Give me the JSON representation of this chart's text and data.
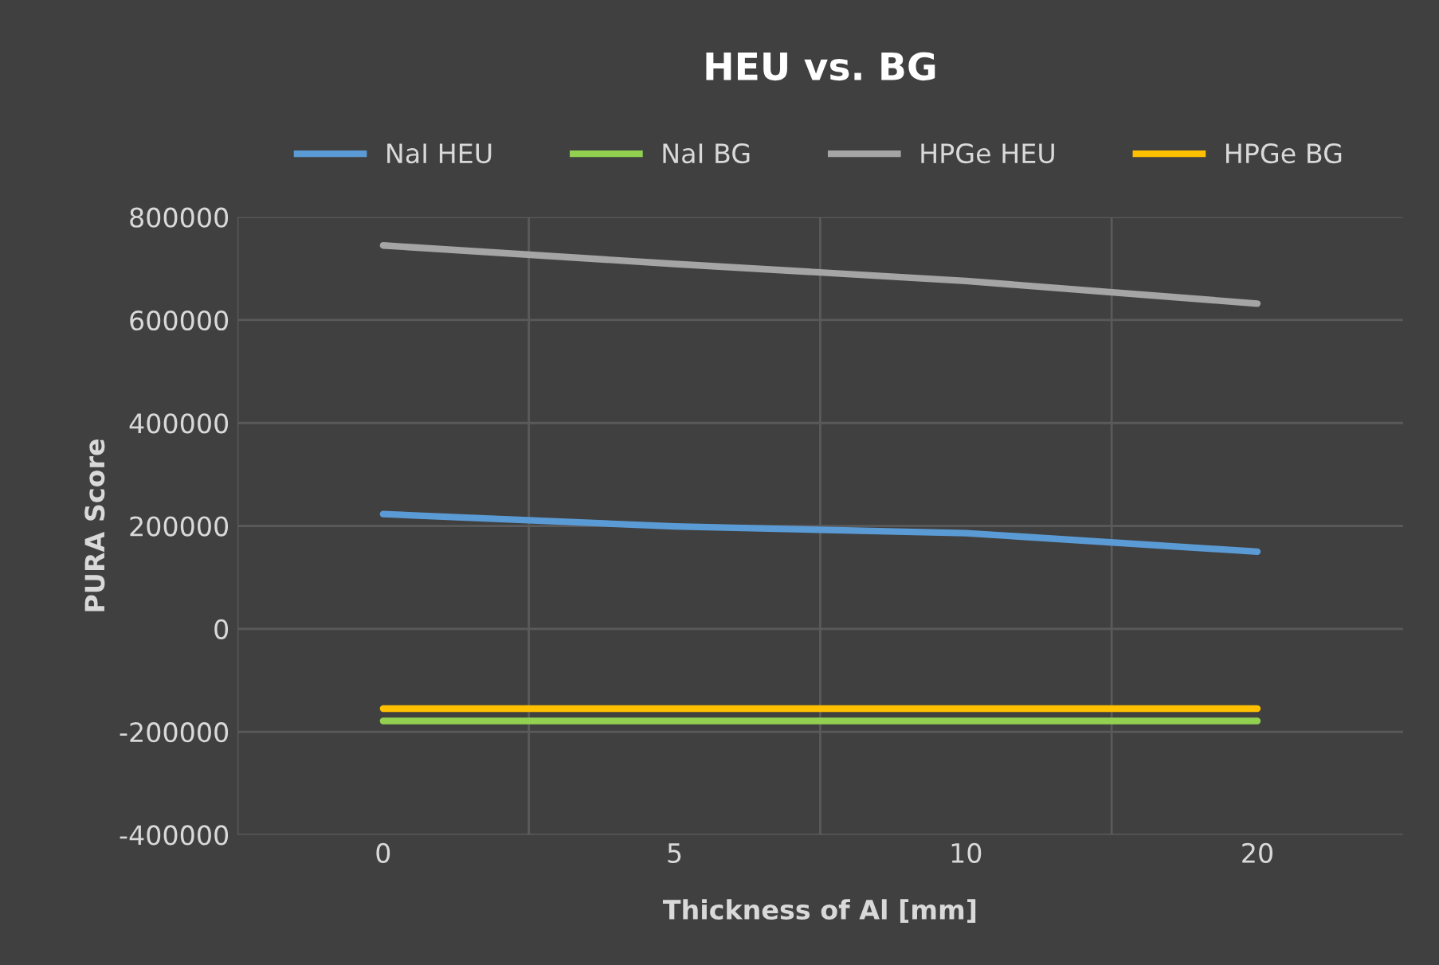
{
  "chart_data": {
    "type": "line",
    "title": "HEU vs. BG",
    "xlabel": "Thickness of Al [mm]",
    "ylabel": "PURA Score",
    "categories": [
      "0",
      "5",
      "10",
      "20"
    ],
    "series": [
      {
        "name": "NaI HEU",
        "color": "#5b9bd5",
        "values": [
          223000,
          199000,
          186000,
          150000
        ]
      },
      {
        "name": "NaI BG",
        "color": "#92d050",
        "values": [
          -179000,
          -179000,
          -179000,
          -179000
        ]
      },
      {
        "name": "HPGe HEU",
        "color": "#a5a5a5",
        "values": [
          745000,
          709000,
          676000,
          632000
        ]
      },
      {
        "name": "HPGe BG",
        "color": "#ffc000",
        "values": [
          -155000,
          -155000,
          -155000,
          -155000
        ]
      }
    ],
    "ylim": [
      -400000,
      800000
    ],
    "yticks": [
      -400000,
      -200000,
      0,
      200000,
      400000,
      600000,
      800000
    ],
    "grid": true,
    "legend": "top",
    "marker": "none",
    "line_style": "solid"
  }
}
